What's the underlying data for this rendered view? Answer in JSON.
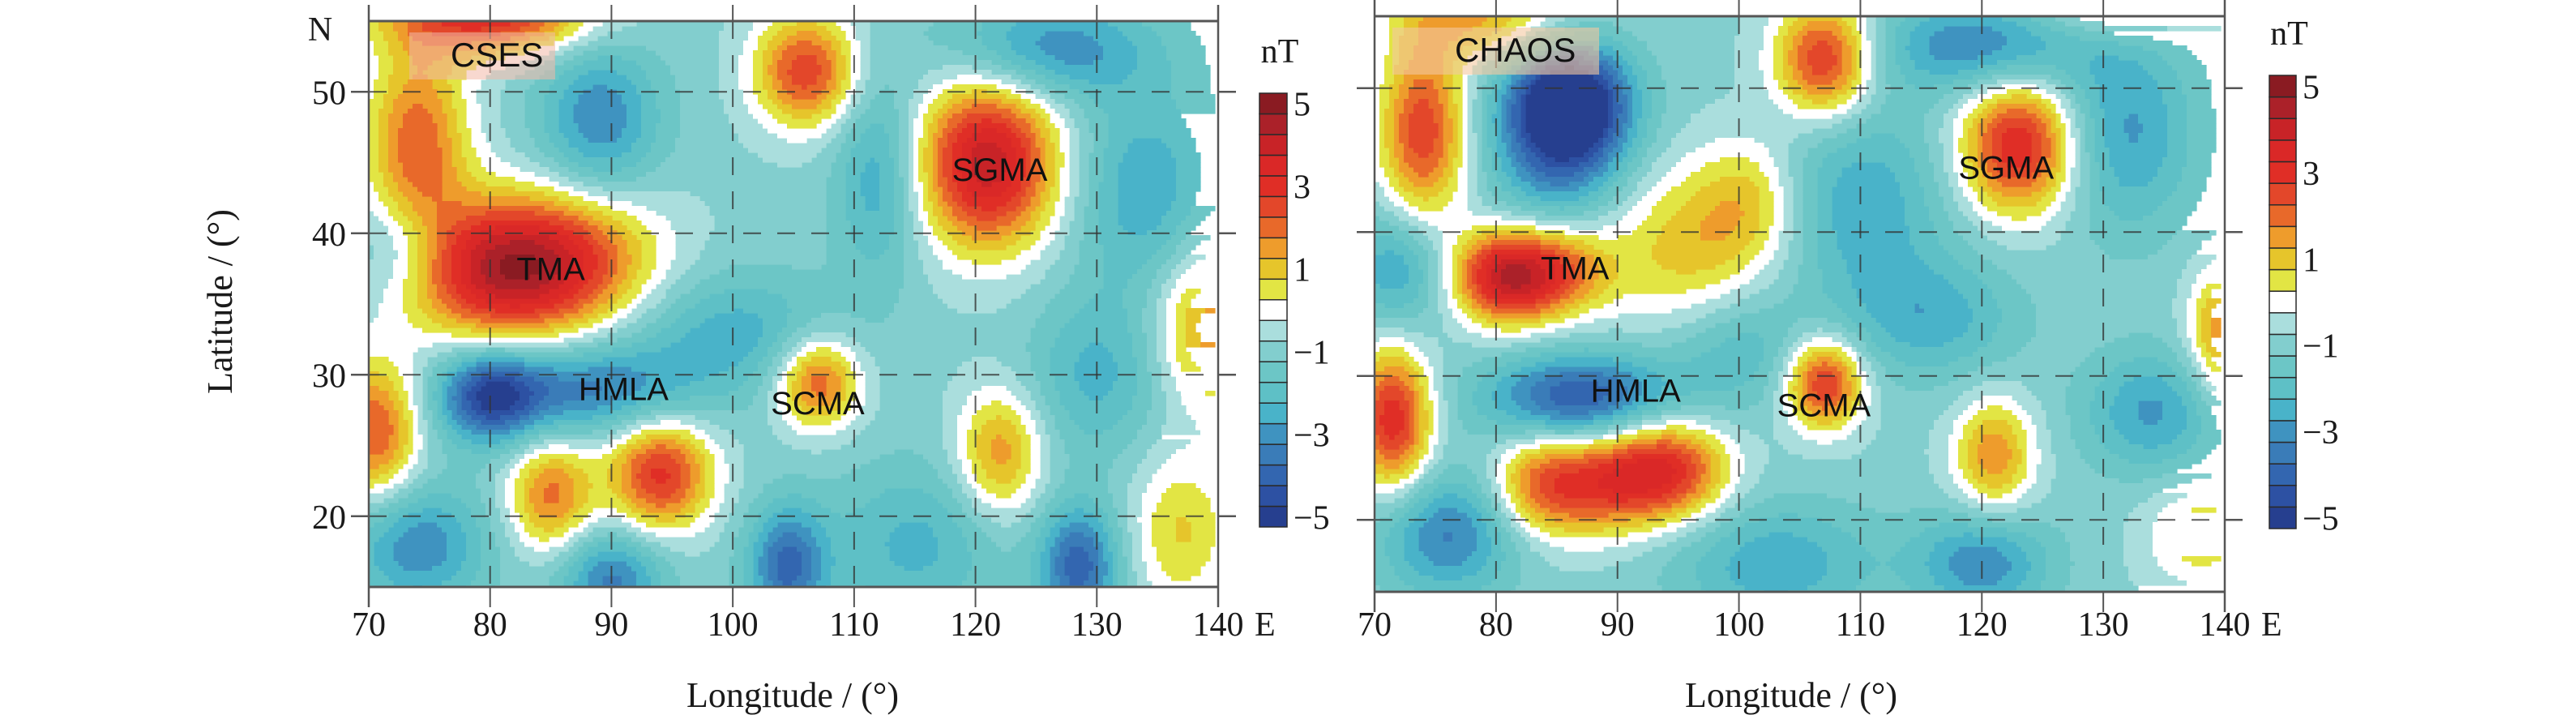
{
  "figure": {
    "ylabel": "Latitude / (°)",
    "north_marker": "N",
    "east_marker": "E"
  },
  "chart_data": [
    {
      "type": "heatmap",
      "subtype": "filled-contour-map",
      "title": "CSES",
      "xlabel": "Longitude / (°)",
      "ylabel": "Latitude / (°)",
      "xlim": [
        70,
        140
      ],
      "ylim": [
        15,
        55
      ],
      "xticks": [
        70,
        80,
        90,
        100,
        110,
        120,
        130,
        140
      ],
      "xtick_labels": [
        "70",
        "80",
        "90",
        "100",
        "110",
        "120",
        "130",
        "140"
      ],
      "yticks": [
        20,
        30,
        40,
        50
      ],
      "ytick_labels": [
        "20",
        "30",
        "40",
        "50"
      ],
      "grid": true,
      "grid_style": "dashed",
      "colorbar": {
        "label": "nT",
        "range": [
          -5.25,
          5.25
        ],
        "tick_values": [
          5,
          3,
          1,
          -1,
          -3,
          -5
        ],
        "tick_labels": [
          "5",
          "3",
          "1",
          "−1",
          "−3",
          "−5"
        ],
        "position": "right"
      },
      "annotations": [
        {
          "text": "TMA",
          "lon": 85,
          "lat": 37.5
        },
        {
          "text": "HMLA",
          "lon": 91,
          "lat": 29
        },
        {
          "text": "SCMA",
          "lon": 107,
          "lat": 28
        },
        {
          "text": "SGMA",
          "lon": 122,
          "lat": 44.5
        }
      ],
      "anomalies_nT": [
        {
          "lon": 81,
          "lat": 37.5,
          "amp": 5.0,
          "sx": 5.5,
          "sy": 3.5
        },
        {
          "lon": 88,
          "lat": 38.5,
          "amp": 2.0,
          "sx": 5,
          "sy": 3.5
        },
        {
          "lon": 121,
          "lat": 45,
          "amp": 5.0,
          "sx": 4,
          "sy": 4.2
        },
        {
          "lon": 106,
          "lat": 51.5,
          "amp": 3.5,
          "sx": 3,
          "sy": 2.8
        },
        {
          "lon": 80,
          "lat": 55.5,
          "amp": 4.0,
          "sx": 6,
          "sy": 2.0
        },
        {
          "lon": 74,
          "lat": 46.5,
          "amp": 3.0,
          "sx": 3,
          "sy": 5
        },
        {
          "lon": 107,
          "lat": 29.5,
          "amp": 3.2,
          "sx": 2.4,
          "sy": 2.3
        },
        {
          "lon": 94,
          "lat": 23,
          "amp": 3.8,
          "sx": 3,
          "sy": 2.8
        },
        {
          "lon": 85,
          "lat": 21.5,
          "amp": 2.8,
          "sx": 2.5,
          "sy": 2.8
        },
        {
          "lon": 70.5,
          "lat": 26,
          "amp": 3.2,
          "sx": 2.5,
          "sy": 3.5
        },
        {
          "lon": 122,
          "lat": 24.5,
          "amp": 2.5,
          "sx": 2.5,
          "sy": 3.2
        },
        {
          "lon": 139,
          "lat": 33.5,
          "amp": 2.5,
          "sx": 3,
          "sy": 4
        },
        {
          "lon": 137,
          "lat": 19,
          "amp": 1.7,
          "sx": 3,
          "sy": 4
        },
        {
          "lon": 80,
          "lat": 28.5,
          "amp": -3.5,
          "sx": 3,
          "sy": 2.3
        },
        {
          "lon": 88,
          "lat": 29,
          "amp": -2.5,
          "sx": 6,
          "sy": 2.3
        },
        {
          "lon": 89,
          "lat": 48,
          "amp": -2.3,
          "sx": 3.5,
          "sy": 4
        },
        {
          "lon": 126,
          "lat": 53,
          "amp": -2.3,
          "sx": 6,
          "sy": 2.5
        },
        {
          "lon": 104.5,
          "lat": 16.5,
          "amp": -3.0,
          "sx": 2.3,
          "sy": 3
        },
        {
          "lon": 128.5,
          "lat": 16.5,
          "amp": -3.2,
          "sx": 2.3,
          "sy": 3
        },
        {
          "lon": 90,
          "lat": 15.5,
          "amp": -2.5,
          "sx": 3,
          "sy": 2.5
        },
        {
          "lon": 74,
          "lat": 18,
          "amp": -2.3,
          "sx": 4,
          "sy": 3
        },
        {
          "lon": 112,
          "lat": 44,
          "amp": -1.8,
          "sx": 2.5,
          "sy": 5
        },
        {
          "lon": 134,
          "lat": 43,
          "amp": -1.8,
          "sx": 4,
          "sy": 5
        },
        {
          "lon": 100,
          "lat": 33,
          "amp": -1.6,
          "sx": 6,
          "sy": 3
        },
        {
          "lon": 73,
          "lat": 39,
          "amp": -1.5,
          "sx": 3,
          "sy": 2.5
        },
        {
          "lon": 115,
          "lat": 18,
          "amp": -1.5,
          "sx": 5,
          "sy": 4
        },
        {
          "lon": 130,
          "lat": 30,
          "amp": -1.5,
          "sx": 4,
          "sy": 4
        }
      ],
      "background_nT": -0.9
    },
    {
      "type": "heatmap",
      "subtype": "filled-contour-map",
      "title": "CHAOS",
      "xlabel": "Longitude / (°)",
      "ylabel": "",
      "xlim": [
        70,
        140
      ],
      "ylim": [
        15,
        55
      ],
      "xticks": [
        70,
        80,
        90,
        100,
        110,
        120,
        130,
        140
      ],
      "xtick_labels": [
        "70",
        "80",
        "90",
        "100",
        "110",
        "120",
        "130",
        "140"
      ],
      "yticks": [
        20,
        30,
        40,
        50
      ],
      "ytick_labels": [],
      "grid": true,
      "grid_style": "dashed",
      "colorbar": {
        "label": "nT",
        "range": [
          -5.25,
          5.25
        ],
        "tick_values": [
          5,
          3,
          1,
          -1,
          -3,
          -5
        ],
        "tick_labels": [
          "5",
          "3",
          "1",
          "−1",
          "−3",
          "−5"
        ],
        "position": "right"
      },
      "annotations": [
        {
          "text": "TMA",
          "lon": 86.5,
          "lat": 37.5
        },
        {
          "text": "HMLA",
          "lon": 91.5,
          "lat": 29
        },
        {
          "text": "SCMA",
          "lon": 107,
          "lat": 28
        },
        {
          "text": "SGMA",
          "lon": 122,
          "lat": 44.5
        }
      ],
      "anomalies_nT": [
        {
          "lon": 81,
          "lat": 37,
          "amp": 5.0,
          "sx": 3.2,
          "sy": 2.3
        },
        {
          "lon": 86,
          "lat": 37.5,
          "amp": 2.0,
          "sx": 3,
          "sy": 2.2
        },
        {
          "lon": 96,
          "lat": 39,
          "amp": 1.9,
          "sx": 5,
          "sy": 4
        },
        {
          "lon": 101,
          "lat": 42.5,
          "amp": 1.4,
          "sx": 3,
          "sy": 3
        },
        {
          "lon": 123,
          "lat": 46,
          "amp": 4.2,
          "sx": 3.3,
          "sy": 3.3
        },
        {
          "lon": 107,
          "lat": 52,
          "amp": 3.8,
          "sx": 2.8,
          "sy": 2.8
        },
        {
          "lon": 74,
          "lat": 47,
          "amp": 3.5,
          "sx": 2.5,
          "sy": 4.5
        },
        {
          "lon": 79,
          "lat": 55,
          "amp": 2.2,
          "sx": 5,
          "sy": 2
        },
        {
          "lon": 107,
          "lat": 29.5,
          "amp": 3.8,
          "sx": 2.2,
          "sy": 2.2
        },
        {
          "lon": 94,
          "lat": 23.5,
          "amp": 4.0,
          "sx": 3.5,
          "sy": 2.5
        },
        {
          "lon": 84,
          "lat": 22.5,
          "amp": 3.0,
          "sx": 3,
          "sy": 2.5
        },
        {
          "lon": 89,
          "lat": 22.5,
          "amp": 2.2,
          "sx": 3,
          "sy": 2.5
        },
        {
          "lon": 71.5,
          "lat": 27,
          "amp": 4.0,
          "sx": 2.2,
          "sy": 3.5
        },
        {
          "lon": 121,
          "lat": 24.5,
          "amp": 2.5,
          "sx": 2.3,
          "sy": 2.8
        },
        {
          "lon": 140,
          "lat": 33,
          "amp": 2.8,
          "sx": 2,
          "sy": 3.2
        },
        {
          "lon": 138,
          "lat": 19,
          "amp": 1.6,
          "sx": 3,
          "sy": 2.5
        },
        {
          "lon": 131,
          "lat": 55.5,
          "amp": 1.5,
          "sx": 5,
          "sy": 1.5
        },
        {
          "lon": 86,
          "lat": 49,
          "amp": -5.0,
          "sx": 3.5,
          "sy": 3.0
        },
        {
          "lon": 85,
          "lat": 45,
          "amp": -2.0,
          "sx": 4,
          "sy": 4
        },
        {
          "lon": 87,
          "lat": 28.5,
          "amp": -3.5,
          "sx": 5.5,
          "sy": 2.2
        },
        {
          "lon": 120,
          "lat": 53,
          "amp": -2.5,
          "sx": 6,
          "sy": 2.3
        },
        {
          "lon": 132,
          "lat": 47,
          "amp": -2.0,
          "sx": 4,
          "sy": 5
        },
        {
          "lon": 110,
          "lat": 42,
          "amp": -1.8,
          "sx": 5,
          "sy": 5
        },
        {
          "lon": 76,
          "lat": 19,
          "amp": -2.5,
          "sx": 4,
          "sy": 3
        },
        {
          "lon": 72,
          "lat": 37.5,
          "amp": -2.0,
          "sx": 3,
          "sy": 3
        },
        {
          "lon": 120,
          "lat": 17,
          "amp": -2.3,
          "sx": 4,
          "sy": 2.5
        },
        {
          "lon": 134,
          "lat": 27.5,
          "amp": -2.0,
          "sx": 4,
          "sy": 3
        },
        {
          "lon": 103,
          "lat": 17,
          "amp": -1.8,
          "sx": 6,
          "sy": 3
        },
        {
          "lon": 116,
          "lat": 34,
          "amp": -1.6,
          "sx": 5,
          "sy": 3
        },
        {
          "lon": 100,
          "lat": 32,
          "amp": -1.3,
          "sx": 4,
          "sy": 3
        }
      ],
      "background_nT": -0.85
    }
  ],
  "colormap": {
    "levels_low_to_high": [
      "#263f8f",
      "#2d51a3",
      "#3366b0",
      "#3a7cb8",
      "#3f93c0",
      "#49b3c9",
      "#5ec0c6",
      "#6cc6c6",
      "#82cece",
      "#aadedd",
      "#ffffff",
      "#e2e544",
      "#e6c52b",
      "#ee9c2c",
      "#e8692a",
      "#e3472a",
      "#e02e26",
      "#da2827",
      "#c82327",
      "#ab2129",
      "#8a1b22"
    ],
    "bin_width_nT": 0.5,
    "min_nT": -5.25
  }
}
